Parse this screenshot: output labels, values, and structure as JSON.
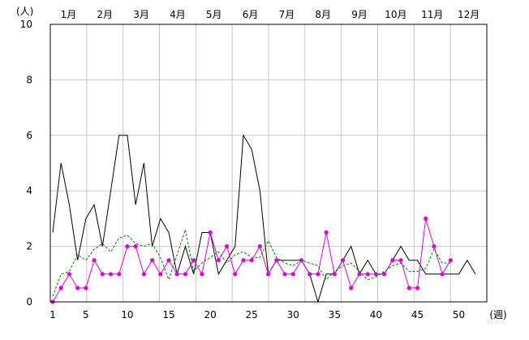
{
  "chart_data": {
    "type": "line",
    "y_unit_label": "(人)",
    "x_unit_label": "(週)",
    "months": [
      "1月",
      "2月",
      "3月",
      "4月",
      "5月",
      "6月",
      "7月",
      "8月",
      "9月",
      "10月",
      "11月",
      "12月"
    ],
    "x_ticks": [
      "1",
      "5",
      "10",
      "15",
      "20",
      "25",
      "30",
      "35",
      "40",
      "45",
      "50"
    ],
    "y_ticks": [
      "0",
      "2",
      "4",
      "6",
      "8",
      "10"
    ],
    "xlim": [
      1,
      52
    ],
    "ylim": [
      0,
      10
    ],
    "grid": true,
    "series": [
      {
        "style": "solid",
        "color": "#000000",
        "x": [
          1,
          2,
          3,
          4,
          5,
          6,
          7,
          8,
          9,
          10,
          11,
          12,
          13,
          14,
          15,
          16,
          17,
          18,
          19,
          20,
          21,
          22,
          23,
          24,
          25,
          26,
          27,
          28,
          29,
          30,
          31,
          32,
          33,
          34,
          35,
          36,
          37,
          38,
          39,
          40,
          41,
          42,
          43,
          44,
          45,
          46,
          47,
          48,
          49,
          50,
          51,
          52
        ],
        "values": [
          2.5,
          5,
          3.5,
          1.5,
          3,
          3.5,
          2,
          4,
          6,
          6,
          3.5,
          5,
          2,
          3,
          2.5,
          1,
          2,
          1,
          2.5,
          2.5,
          1,
          1.5,
          2,
          6,
          5.5,
          4,
          1,
          1.5,
          1.5,
          1.5,
          1.5,
          1,
          0,
          1,
          1,
          1.5,
          2,
          1,
          1.5,
          1,
          1,
          1.5,
          2,
          1.5,
          1.5,
          1,
          1,
          1,
          1,
          1,
          1.5,
          1
        ]
      },
      {
        "style": "markers",
        "color": "#dd00dd",
        "x": [
          1,
          2,
          3,
          4,
          5,
          6,
          7,
          8,
          9,
          10,
          11,
          12,
          13,
          14,
          15,
          16,
          17,
          18,
          19,
          20,
          21,
          22,
          23,
          24,
          25,
          26,
          27,
          28,
          29,
          30,
          31,
          32,
          33,
          34,
          35,
          36,
          37,
          38,
          39,
          40,
          41,
          42,
          43,
          44,
          45,
          46,
          47,
          48,
          49
        ],
        "values": [
          0,
          0.5,
          1,
          0.5,
          0.5,
          1.5,
          1,
          1,
          1,
          2,
          2,
          1,
          1.5,
          1,
          1.5,
          1,
          1,
          1.5,
          1,
          2.5,
          1.5,
          2,
          1,
          1.5,
          1.5,
          2,
          1,
          1.5,
          1,
          1,
          1.5,
          1,
          1,
          2.5,
          1,
          1.5,
          0.5,
          1,
          1,
          1,
          1,
          1.5,
          1.5,
          0.5,
          0.5,
          3,
          2,
          1,
          1.5
        ]
      },
      {
        "style": "dashed",
        "color": "#008000",
        "x": [
          1,
          2,
          3,
          4,
          5,
          6,
          7,
          8,
          9,
          10,
          11,
          12,
          13,
          14,
          15,
          16,
          17,
          18,
          19,
          20,
          21,
          22,
          23,
          24,
          25,
          26,
          27,
          28,
          29,
          30,
          31,
          32,
          33,
          34,
          35,
          36,
          37,
          38,
          39,
          40,
          41,
          42,
          43,
          44,
          45,
          46,
          47,
          48,
          49
        ],
        "values": [
          0.2,
          1,
          1.1,
          1.7,
          1.5,
          1.9,
          2.1,
          1.8,
          2.3,
          2.4,
          2.1,
          2,
          2.1,
          1.6,
          0.8,
          1.7,
          2.6,
          1.1,
          1.4,
          1.6,
          1.8,
          1.4,
          1.7,
          1.8,
          1.6,
          1.6,
          2.2,
          1.6,
          1.4,
          1.3,
          1.5,
          1.4,
          1.3,
          0.8,
          1.1,
          1.3,
          1.4,
          1.1,
          0.8,
          0.9,
          1.1,
          1.3,
          1.4,
          1.1,
          1.1,
          1.2,
          1.9,
          1.4,
          1.4
        ]
      }
    ]
  }
}
